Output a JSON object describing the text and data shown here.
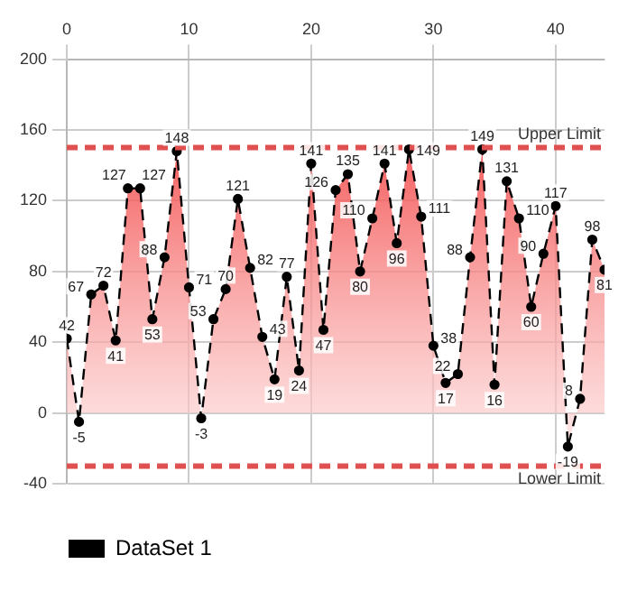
{
  "chart_data": {
    "type": "area",
    "x": [
      0,
      1,
      2,
      3,
      4,
      5,
      6,
      7,
      8,
      9,
      10,
      11,
      12,
      13,
      14,
      15,
      16,
      17,
      18,
      19,
      20,
      21,
      22,
      23,
      24,
      25,
      26,
      27,
      28,
      29,
      30,
      31,
      32,
      33,
      34,
      35,
      36,
      37,
      38,
      39,
      40,
      41,
      42,
      43,
      44
    ],
    "series": [
      {
        "name": "DataSet 1",
        "color": "#000000",
        "values": [
          42,
          -5,
          67,
          72,
          41,
          127,
          127,
          53,
          88,
          148,
          71,
          -3,
          53,
          70,
          121,
          82,
          43,
          19,
          77,
          24,
          141,
          47,
          126,
          135,
          80,
          110,
          141,
          96,
          149,
          111,
          38,
          17,
          22,
          88,
          149,
          16,
          131,
          110,
          60,
          90,
          117,
          -19,
          8,
          98,
          81
        ]
      }
    ],
    "xlim": [
      0,
      44
    ],
    "xticks": [
      0,
      10,
      20,
      30,
      40
    ],
    "ylim": [
      -40,
      200
    ],
    "yticks": [
      -40,
      0,
      40,
      80,
      120,
      160,
      200
    ],
    "ref_lines": [
      {
        "axis": "y",
        "value": 150,
        "label": "Upper Limit",
        "color": "#e05050",
        "line_style": "dashed"
      },
      {
        "axis": "y",
        "value": -30,
        "label": "Lower Limit",
        "color": "#e05050",
        "line_style": "dashed"
      }
    ],
    "grid": true,
    "legend": "bottom left",
    "marker": "circle",
    "line_style": "dashed",
    "data_labels": true
  }
}
